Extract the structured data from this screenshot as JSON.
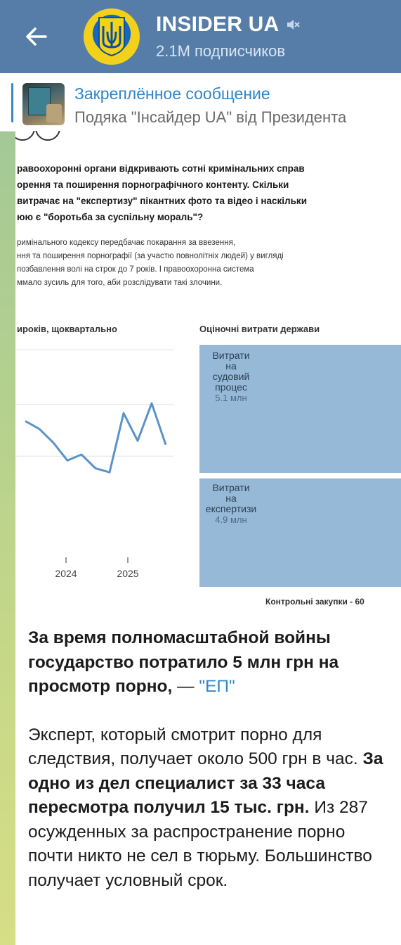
{
  "header": {
    "channel_name": "INSIDER UA",
    "subscribers": "2.1M подписчиков",
    "colors": {
      "bar": "#557da8"
    }
  },
  "pinned": {
    "title": "Закреплённое сообщение",
    "text": "Подяка \"Інсайдер UA\" від Президента"
  },
  "embed": {
    "lead_lines": [
      "равоохоронні органи відкривають сотні кримінальних справ",
      "орення та поширення порнографічного контенту. Скільки",
      "витрачає на \"експертизу\" пікантних фото та відео і наскільки",
      "юю є \"боротьба за суспільну мораль\"?"
    ],
    "small_lines": [
      "римінального кодексу передбачає покарання за ввезення,",
      "ння та поширення порнографії (за участю повнолітніх людей) у вигляді",
      "позбавлення волі на строк до 7 років. І правоохоронна система",
      "ммало зусиль для того, аби розслідувати такі злочини."
    ],
    "left_chart_label": "ироків, щоквартально",
    "right_chart_label": "Оціночні витрати держави",
    "control_label": "Контрольні закупки - 60"
  },
  "chart_data": [
    {
      "type": "line",
      "title": "ироків, щоквартально",
      "x_tick_labels": [
        "2024",
        "2025"
      ],
      "series": [
        {
          "values": [
            0.62,
            0.58,
            0.51,
            0.42,
            0.45,
            0.38,
            0.36,
            0.66,
            0.52,
            0.71,
            0.5
          ]
        }
      ],
      "ylim": [
        0,
        1
      ],
      "grid": true
    },
    {
      "type": "treemap",
      "title": "Оціночні витрати держави",
      "categories": [
        "Витрати на судовий процес",
        "Витрати на експертизи"
      ],
      "labels": [
        [
          "Витрати",
          "на",
          "судовий",
          "процес"
        ],
        [
          "Витрати",
          "на",
          "експертизи"
        ]
      ],
      "value_labels": [
        "5.1 млн",
        "4.9 млн"
      ],
      "values": [
        5.1,
        4.9
      ],
      "colors": [
        "#96b9d8",
        "#96b9d8"
      ]
    }
  ],
  "message": {
    "bold_intro": "За время полномасштабной войны государство потратило 5 млн грн на просмотр порно,",
    "dash": " — ",
    "link_text": "\"ЕП\"",
    "p2_regular1": "Эксперт, который смотрит порно для следствия, получает около 500 грн в час.",
    "p2_bold": "За одно из дел специалист за 33 часа пересмотра получил 15 тыс. грн.",
    "p2_regular2": "Из 287 осужденных за распространение порно почти никто не сел в тюрьму. Большинство получает условный срок."
  }
}
